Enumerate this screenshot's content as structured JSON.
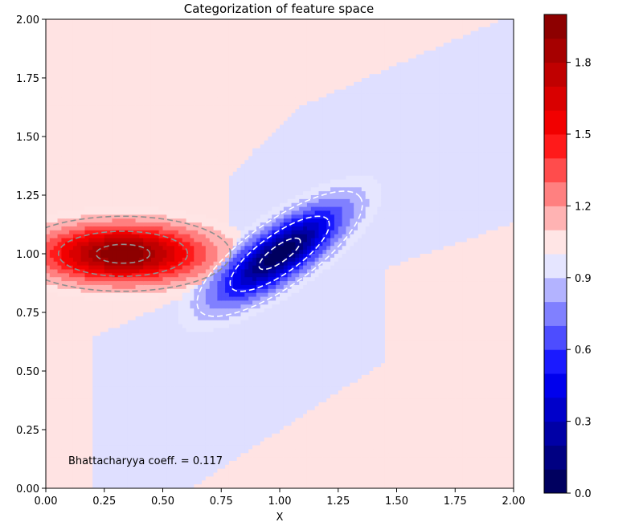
{
  "chart_data": {
    "type": "heatmap",
    "title": "Categorization of feature space",
    "xlabel": "X",
    "ylabel": "",
    "xlim": [
      0,
      2
    ],
    "ylim": [
      0,
      2
    ],
    "x_ticks": [
      "0.00",
      "0.25",
      "0.50",
      "0.75",
      "1.00",
      "1.25",
      "1.50",
      "1.75",
      "2.00"
    ],
    "y_ticks": [
      "0.00",
      "0.25",
      "0.50",
      "0.75",
      "1.00",
      "1.25",
      "1.50",
      "1.75",
      "2.00"
    ],
    "colormap": "seismic",
    "colorbar": {
      "range": [
        0,
        2
      ],
      "levels": 20,
      "tick_values": [
        0.0,
        0.3,
        0.6,
        0.9,
        1.2,
        1.5,
        1.8
      ],
      "tick_labels": [
        "0.0",
        "0.3",
        "0.6",
        "0.9",
        "1.2",
        "1.5",
        "1.8"
      ]
    },
    "annotation": "Bhattacharyya coeff. = 0.117",
    "red_class": {
      "mean": [
        0.33,
        1.0
      ],
      "std": [
        0.23,
        0.08
      ],
      "rotation_deg": 0,
      "contour_color": "#909090"
    },
    "blue_class": {
      "mean": [
        1.0,
        1.0
      ],
      "std": [
        0.21,
        0.07
      ],
      "rotation_deg": 35,
      "contour_color": "#ffffff"
    },
    "contour_sigmas": [
      0.5,
      1.2,
      2.0
    ],
    "background_colors": {
      "class_a": "#ffe3e3",
      "class_b": "#dfdfff"
    }
  }
}
